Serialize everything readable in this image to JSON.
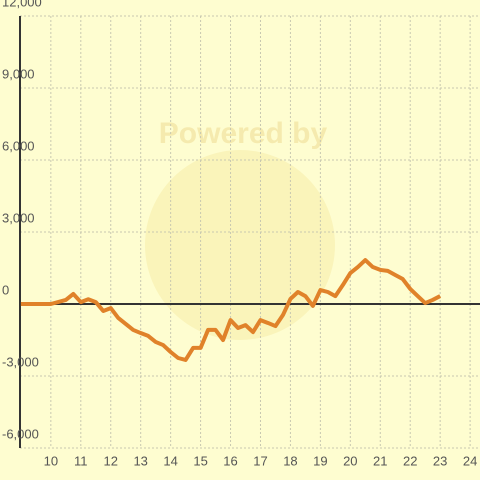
{
  "chart_data": {
    "type": "line",
    "watermark": "Powered by",
    "x": [
      9,
      10,
      10.5,
      10.75,
      11,
      11.25,
      11.5,
      11.75,
      12,
      12.25,
      12.5,
      12.75,
      13,
      13.25,
      13.5,
      13.75,
      14,
      14.25,
      14.5,
      14.75,
      15,
      15.25,
      15.5,
      15.75,
      16,
      16.25,
      16.5,
      16.75,
      17,
      17.25,
      17.5,
      17.75,
      18,
      18.25,
      18.5,
      18.75,
      19,
      19.25,
      19.5,
      19.75,
      20,
      20.25,
      20.5,
      20.75,
      21,
      21.25,
      21.5,
      21.75,
      22,
      22.25,
      22.5,
      22.75,
      23
    ],
    "series": [
      {
        "color": "#e0822a",
        "values": [
          0,
          0,
          170,
          420,
          80,
          200,
          80,
          -290,
          -170,
          -580,
          -830,
          -1080,
          -1210,
          -1330,
          -1580,
          -1710,
          -2000,
          -2250,
          -2330,
          -1830,
          -1830,
          -1080,
          -1080,
          -1500,
          -670,
          -1000,
          -880,
          -1170,
          -670,
          -790,
          -920,
          -460,
          210,
          500,
          330,
          -80,
          580,
          500,
          330,
          790,
          1290,
          1540,
          1830,
          1540,
          1420,
          1380,
          1210,
          1040,
          630,
          330,
          40,
          170,
          330
        ]
      }
    ],
    "xlim": [
      8.97,
      24.33
    ],
    "xticks": [
      10,
      11,
      12,
      13,
      14,
      15,
      16,
      17,
      18,
      19,
      20,
      21,
      22,
      23,
      24
    ],
    "ylim": [
      -6000,
      12000
    ],
    "yticks": [
      {
        "value": -6000,
        "label": "-6,000"
      },
      {
        "value": -3000,
        "label": "-3,000"
      },
      0,
      {
        "value": 3000,
        "label": "3,000"
      },
      {
        "value": 6000,
        "label": "6,000"
      },
      {
        "value": 9000,
        "label": "9,000"
      },
      {
        "value": 12000,
        "label": "12,000"
      }
    ],
    "grid": true
  }
}
